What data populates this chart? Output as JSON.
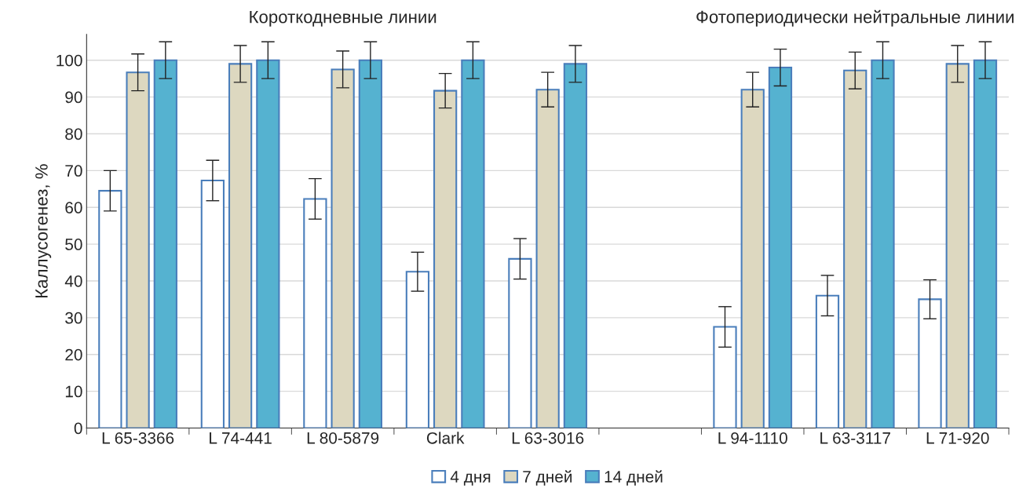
{
  "chart_data": {
    "type": "bar",
    "ylabel": "Каллусогенез, %",
    "categories": [
      "L 65-3366",
      "L 74-441",
      "L 80-5879",
      "Clark",
      "L 63-3016",
      null,
      "L 94-1110",
      "L 63-3117",
      "L 71-920"
    ],
    "series": [
      {
        "name": "4 дня",
        "color": "#ffffff",
        "values": [
          64.5,
          67.3,
          62.3,
          42.5,
          46,
          null,
          27.5,
          36,
          35
        ],
        "errors": [
          5.5,
          5.5,
          5.5,
          5.3,
          5.5,
          null,
          5.5,
          5.5,
          5.3
        ]
      },
      {
        "name": "7 дней",
        "color": "#ddd8c0",
        "values": [
          96.7,
          99,
          97.5,
          91.7,
          92,
          null,
          92,
          97.2,
          99
        ],
        "errors": [
          5,
          5,
          5,
          4.7,
          4.7,
          null,
          4.7,
          5,
          5
        ]
      },
      {
        "name": "14 дней",
        "color": "#55b2d0",
        "values": [
          100,
          100,
          100,
          100,
          99,
          null,
          98,
          100,
          100
        ],
        "errors": [
          5,
          5,
          5,
          5,
          5,
          null,
          5,
          5,
          5
        ]
      }
    ],
    "annotations": [
      "Короткодневные линии",
      "Фотопериодически нейтральные линии"
    ],
    "ylim": [
      0,
      107
    ],
    "yticks": [
      0,
      10,
      20,
      30,
      40,
      50,
      60,
      70,
      80,
      90,
      100
    ],
    "grid": "y",
    "legend": "bottom"
  }
}
